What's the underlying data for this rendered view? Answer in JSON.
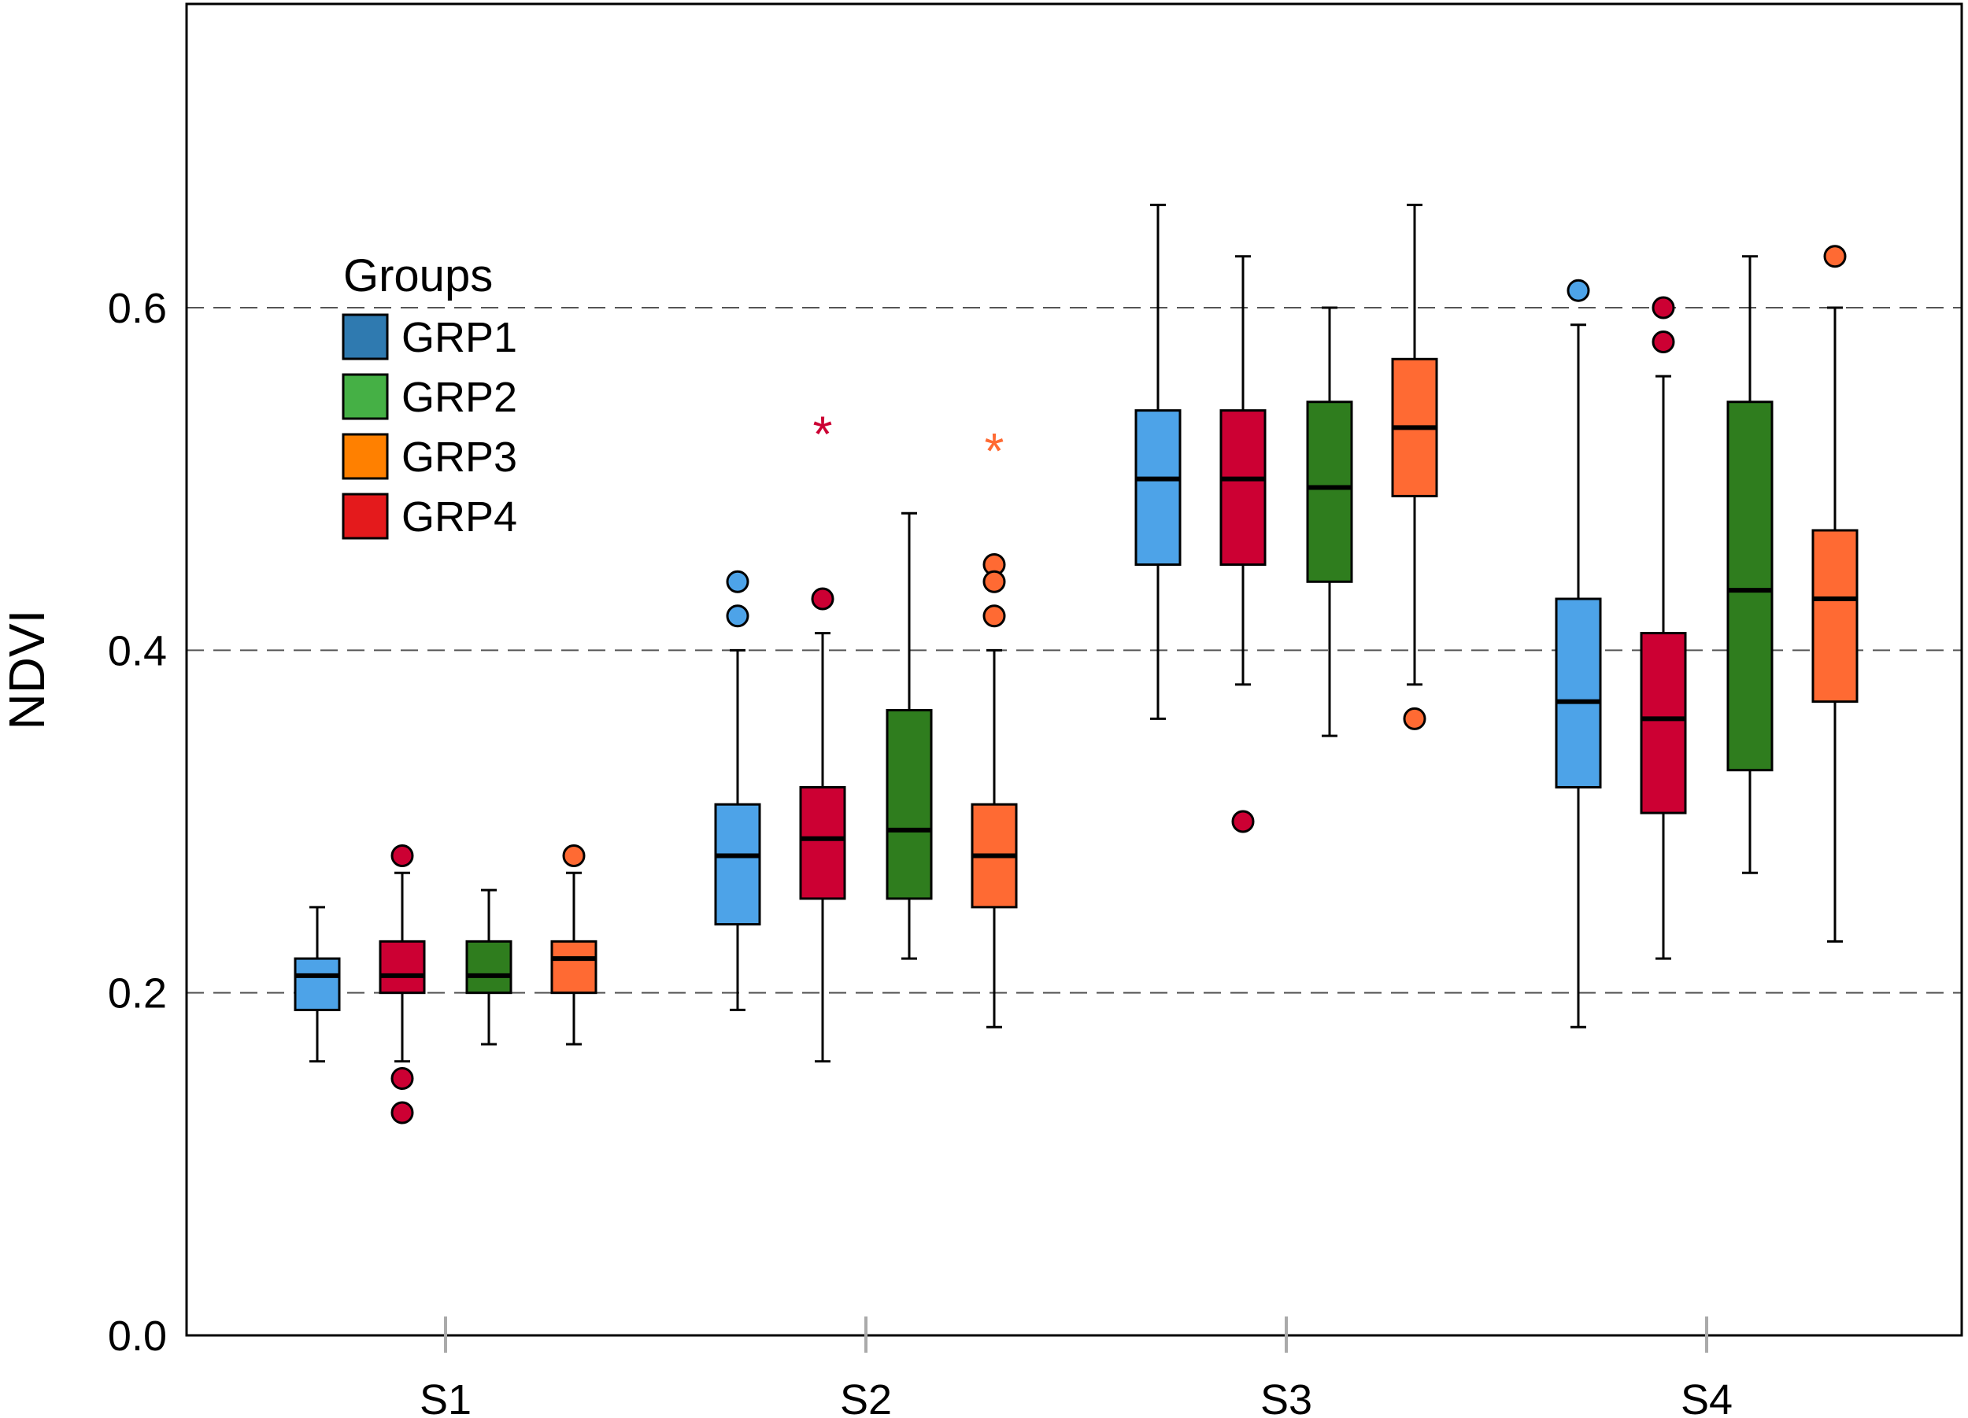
{
  "chart_data": {
    "type": "box",
    "xlabel": "",
    "ylabel": "NDVI",
    "ylim": [
      0.0,
      0.78
    ],
    "yticks": [
      {
        "value": 0.0,
        "label": "0.0"
      },
      {
        "value": 0.2,
        "label": "0.2"
      },
      {
        "value": 0.4,
        "label": "0.4"
      },
      {
        "value": 0.6,
        "label": "0.6"
      }
    ],
    "gridlines": [
      0.2,
      0.4,
      0.6
    ],
    "grid_style": "dashed horizontal",
    "categories": [
      "S1",
      "S2",
      "S3",
      "S4"
    ],
    "legend": {
      "title": "Groups",
      "placement": "upper-left",
      "entries": [
        {
          "label": "GRP1",
          "color": "#2f7ab0"
        },
        {
          "label": "GRP2",
          "color": "#45b045"
        },
        {
          "label": "GRP3",
          "color": "#ff8000"
        },
        {
          "label": "GRP4",
          "color": "#e41a1c"
        }
      ]
    },
    "box_colors": {
      "GRP1": "#4da3e8",
      "GRP2": "#2f7d1e",
      "GRP3": "#ff6a33",
      "GRP4": "#cc0033"
    },
    "series_order_in_group": [
      "GRP1",
      "GRP4",
      "GRP2",
      "GRP3"
    ],
    "boxes": [
      {
        "category": "S1",
        "group": "GRP1",
        "whisker_low": 0.16,
        "q1": 0.19,
        "median": 0.21,
        "q3": 0.22,
        "whisker_high": 0.25,
        "outliers": [],
        "extremes": []
      },
      {
        "category": "S1",
        "group": "GRP4",
        "whisker_low": 0.16,
        "q1": 0.2,
        "median": 0.21,
        "q3": 0.23,
        "whisker_high": 0.27,
        "outliers": [
          0.28,
          0.15,
          0.13
        ],
        "extremes": []
      },
      {
        "category": "S1",
        "group": "GRP2",
        "whisker_low": 0.17,
        "q1": 0.2,
        "median": 0.21,
        "q3": 0.23,
        "whisker_high": 0.26,
        "outliers": [],
        "extremes": []
      },
      {
        "category": "S1",
        "group": "GRP3",
        "whisker_low": 0.17,
        "q1": 0.2,
        "median": 0.22,
        "q3": 0.23,
        "whisker_high": 0.27,
        "outliers": [
          0.28
        ],
        "extremes": []
      },
      {
        "category": "S2",
        "group": "GRP1",
        "whisker_low": 0.19,
        "q1": 0.24,
        "median": 0.28,
        "q3": 0.31,
        "whisker_high": 0.4,
        "outliers": [
          0.44,
          0.42
        ],
        "extremes": []
      },
      {
        "category": "S2",
        "group": "GRP4",
        "whisker_low": 0.16,
        "q1": 0.255,
        "median": 0.29,
        "q3": 0.32,
        "whisker_high": 0.41,
        "outliers": [
          0.43
        ],
        "extremes": [
          0.53
        ]
      },
      {
        "category": "S2",
        "group": "GRP2",
        "whisker_low": 0.22,
        "q1": 0.255,
        "median": 0.295,
        "q3": 0.365,
        "whisker_high": 0.48,
        "outliers": [],
        "extremes": []
      },
      {
        "category": "S2",
        "group": "GRP3",
        "whisker_low": 0.18,
        "q1": 0.25,
        "median": 0.28,
        "q3": 0.31,
        "whisker_high": 0.4,
        "outliers": [
          0.45,
          0.44,
          0.42
        ],
        "extremes": [
          0.52
        ]
      },
      {
        "category": "S3",
        "group": "GRP1",
        "whisker_low": 0.36,
        "q1": 0.45,
        "median": 0.5,
        "q3": 0.54,
        "whisker_high": 0.66,
        "outliers": [],
        "extremes": []
      },
      {
        "category": "S3",
        "group": "GRP4",
        "whisker_low": 0.38,
        "q1": 0.45,
        "median": 0.5,
        "q3": 0.54,
        "whisker_high": 0.63,
        "outliers": [
          0.3
        ],
        "extremes": []
      },
      {
        "category": "S3",
        "group": "GRP2",
        "whisker_low": 0.35,
        "q1": 0.44,
        "median": 0.495,
        "q3": 0.545,
        "whisker_high": 0.6,
        "outliers": [],
        "extremes": []
      },
      {
        "category": "S3",
        "group": "GRP3",
        "whisker_low": 0.38,
        "q1": 0.49,
        "median": 0.53,
        "q3": 0.57,
        "whisker_high": 0.66,
        "outliers": [
          0.36
        ],
        "extremes": []
      },
      {
        "category": "S4",
        "group": "GRP1",
        "whisker_low": 0.18,
        "q1": 0.32,
        "median": 0.37,
        "q3": 0.43,
        "whisker_high": 0.59,
        "outliers": [
          0.61
        ],
        "extremes": []
      },
      {
        "category": "S4",
        "group": "GRP4",
        "whisker_low": 0.22,
        "q1": 0.305,
        "median": 0.36,
        "q3": 0.41,
        "whisker_high": 0.56,
        "outliers": [
          0.6,
          0.58
        ],
        "extremes": []
      },
      {
        "category": "S4",
        "group": "GRP2",
        "whisker_low": 0.27,
        "q1": 0.33,
        "median": 0.435,
        "q3": 0.545,
        "whisker_high": 0.63,
        "outliers": [],
        "extremes": []
      },
      {
        "category": "S4",
        "group": "GRP3",
        "whisker_low": 0.23,
        "q1": 0.37,
        "median": 0.43,
        "q3": 0.47,
        "whisker_high": 0.6,
        "outliers": [
          0.63
        ],
        "extremes": []
      }
    ]
  }
}
